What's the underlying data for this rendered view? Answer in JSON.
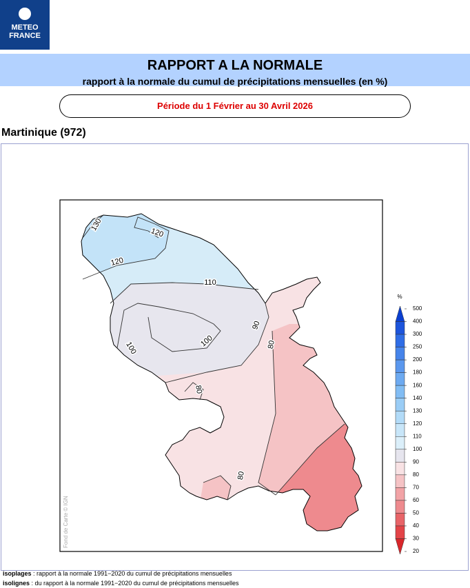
{
  "logo": {
    "line1": "METEO",
    "line2": "FRANCE"
  },
  "header": {
    "title": "RAPPORT A LA NORMALE",
    "subtitle": "rapport à la normale du cumul de précipitations mensuelles (en %)",
    "period": "Période du 1 Février au 30 Avril 2026"
  },
  "region": "Martinique (972)",
  "map": {
    "credit": "Fond de Carte © IGN",
    "contour_labels": [
      "130",
      "120",
      "120",
      "110",
      "100",
      "100",
      "90",
      "80",
      "80",
      "80"
    ]
  },
  "legend": {
    "unit": "%",
    "levels": [
      "500",
      "400",
      "300",
      "250",
      "200",
      "180",
      "160",
      "140",
      "130",
      "120",
      "110",
      "100",
      "90",
      "80",
      "70",
      "60",
      "50",
      "40",
      "30",
      "20"
    ],
    "colors": [
      "#0b3fd0",
      "#1d55dc",
      "#2f6de6",
      "#4684ea",
      "#5b98ee",
      "#6daaf1",
      "#82bdf4",
      "#9acdf6",
      "#b2dbf8",
      "#c8e6f9",
      "#dbeffa",
      "#e6e5ee",
      "#f8e2e4",
      "#f5c3c5",
      "#f2a3a6",
      "#ee8a8e",
      "#e86468",
      "#e34448",
      "#d9262a"
    ]
  },
  "footer": [
    {
      "term": "isoplages",
      "text": " : rapport à la normale 1991−2020 du cumul de précipitations mensuelles"
    },
    {
      "term": "isolignes",
      "text": " : du rapport à la normale 1991−2020 du cumul de précipitations mensuelles"
    }
  ]
}
